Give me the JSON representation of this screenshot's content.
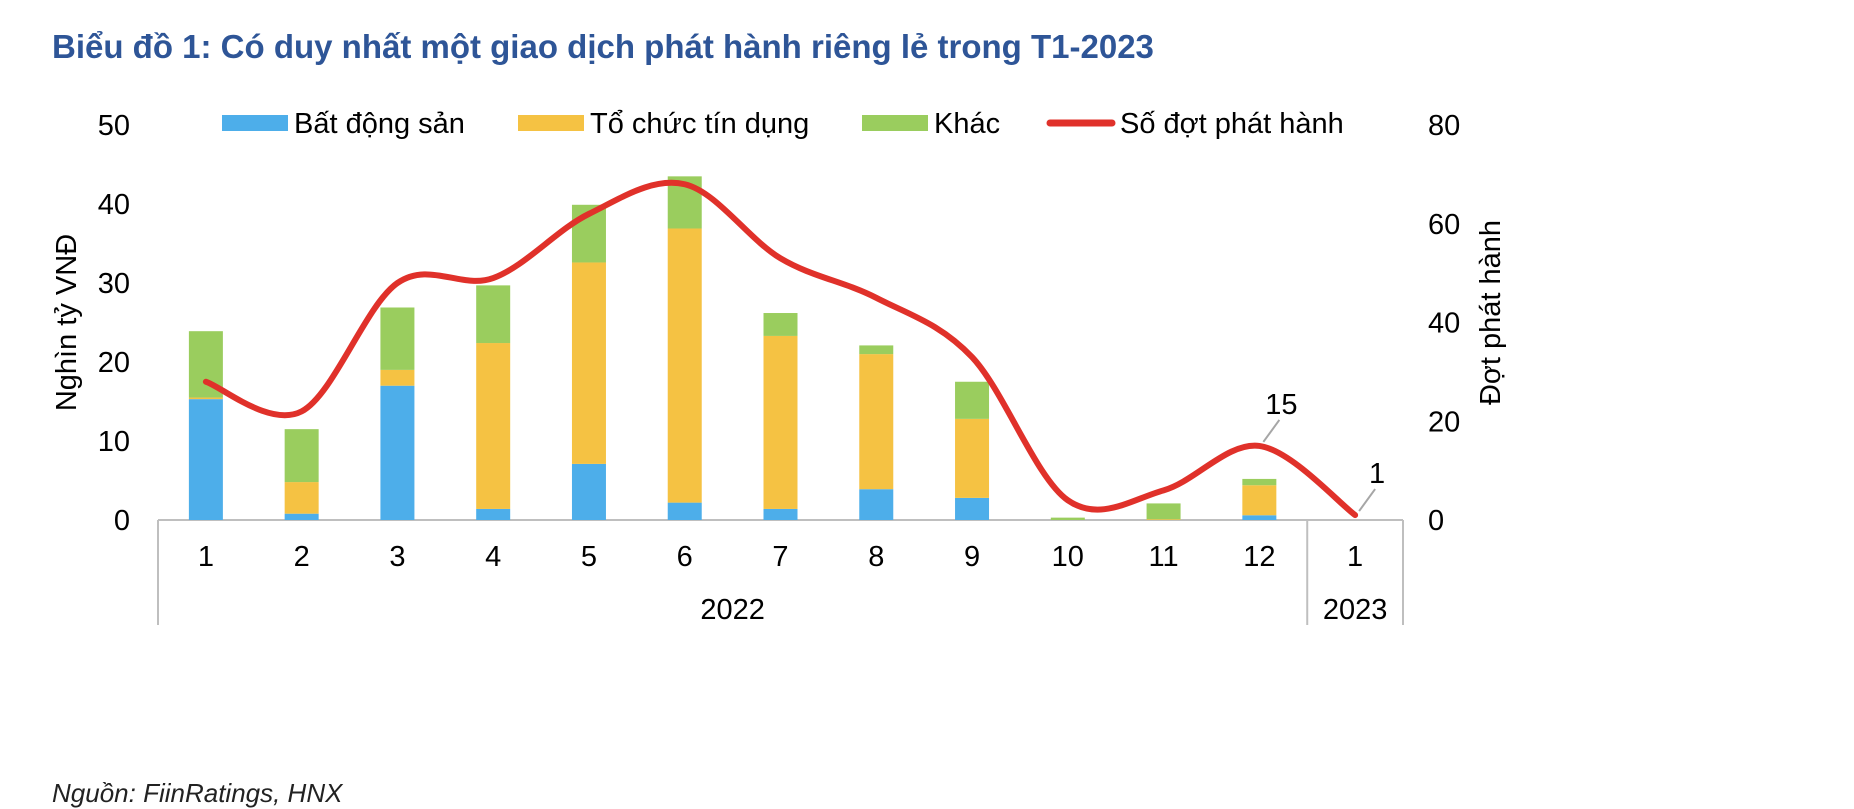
{
  "title": "Biểu đồ 1: Có duy nhất một giao dịch phát hành riêng lẻ trong T1-2023",
  "source": "Nguồn: FiinRatings, HNX",
  "chart_data": {
    "type": "bar",
    "stacked": true,
    "categories": [
      "1",
      "2",
      "3",
      "4",
      "5",
      "6",
      "7",
      "8",
      "9",
      "10",
      "11",
      "12",
      "1"
    ],
    "year_groups": [
      {
        "label": "2022",
        "count": 12
      },
      {
        "label": "2023",
        "count": 1
      }
    ],
    "ylabel": "Nghìn tỷ VNĐ",
    "y2label": "Đợt phát hành",
    "ylim": [
      0,
      50
    ],
    "y2lim": [
      0,
      80
    ],
    "yticks": [
      "0",
      "10",
      "20",
      "30",
      "40",
      "50"
    ],
    "y2ticks": [
      "0",
      "20",
      "40",
      "60",
      "80"
    ],
    "legend_position": "top",
    "series": [
      {
        "name": "Bất động sản",
        "color": "#4DAEEA",
        "type": "bar",
        "values": [
          15.3,
          0.8,
          17.0,
          1.4,
          7.1,
          2.2,
          1.4,
          3.9,
          2.8,
          0.0,
          0.0,
          0.6,
          0.0
        ]
      },
      {
        "name": "Tổ chức tín dụng",
        "color": "#F5C243",
        "type": "bar",
        "values": [
          0.2,
          4.0,
          2.0,
          21.0,
          25.5,
          34.7,
          21.9,
          17.1,
          10.0,
          0.0,
          0.1,
          3.8,
          0.0
        ]
      },
      {
        "name": "Khác",
        "color": "#9ACD5E",
        "type": "bar",
        "values": [
          8.4,
          6.7,
          7.9,
          7.3,
          7.3,
          6.6,
          2.9,
          1.1,
          4.7,
          0.3,
          2.0,
          0.8,
          0.0
        ]
      },
      {
        "name": "Số đợt phát hành",
        "color": "#E0312A",
        "type": "line",
        "axis": "right",
        "values": [
          28,
          22,
          48,
          49,
          62,
          68,
          53,
          45,
          33,
          4,
          6,
          15,
          1
        ]
      }
    ],
    "annotations": [
      {
        "index": 11,
        "text": "15"
      },
      {
        "index": 12,
        "text": "1"
      }
    ]
  }
}
